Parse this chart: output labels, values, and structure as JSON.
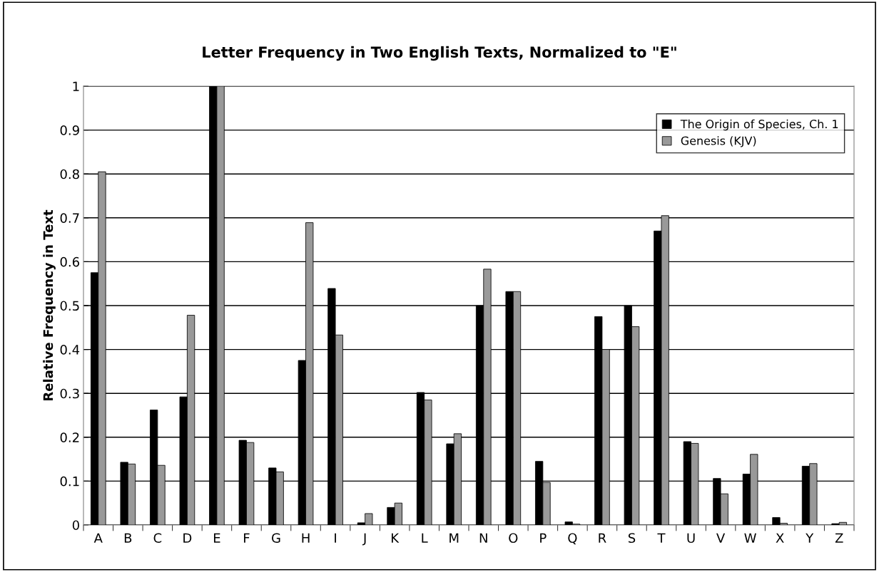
{
  "chart_data": {
    "type": "bar",
    "title": "Letter Frequency in Two English Texts, Normalized to \"E\"",
    "ylabel": "Relative Frequency in Text",
    "categories": [
      "A",
      "B",
      "C",
      "D",
      "E",
      "F",
      "G",
      "H",
      "I",
      "J",
      "K",
      "L",
      "M",
      "N",
      "O",
      "P",
      "Q",
      "R",
      "S",
      "T",
      "U",
      "V",
      "W",
      "X",
      "Y",
      "Z"
    ],
    "series": [
      {
        "name": "The Origin of Species, Ch. 1",
        "color": "#000000",
        "values": [
          0.575,
          0.143,
          0.262,
          0.292,
          1,
          0.193,
          0.13,
          0.375,
          0.539,
          0.005,
          0.04,
          0.302,
          0.185,
          0.5,
          0.532,
          0.145,
          0.007,
          0.475,
          0.5,
          0.67,
          0.19,
          0.106,
          0.116,
          0.017,
          0.134,
          0.003
        ]
      },
      {
        "name": "Genesis (KJV)",
        "color": "#999999",
        "values": [
          0.805,
          0.139,
          0.136,
          0.478,
          1,
          0.188,
          0.121,
          0.689,
          0.433,
          0.026,
          0.05,
          0.285,
          0.208,
          0.583,
          0.532,
          0.097,
          0.002,
          0.4,
          0.452,
          0.705,
          0.186,
          0.071,
          0.161,
          0.004,
          0.14,
          0.006
        ]
      }
    ],
    "ylim": [
      0,
      1
    ],
    "yticks": [
      0,
      {
        "value": 0.1,
        "label": "0.1"
      },
      {
        "value": 0.2,
        "label": "0.2"
      },
      {
        "value": 0.3,
        "label": "0.3"
      },
      {
        "value": 0.4,
        "label": "0.4"
      },
      {
        "value": 0.5,
        "label": "0.5"
      },
      {
        "value": 0.6,
        "label": "0.6"
      },
      {
        "value": 0.7,
        "label": "0.7"
      },
      {
        "value": 0.8,
        "label": "0.8"
      },
      {
        "value": 0.9,
        "label": "0.9"
      },
      1
    ],
    "grid": "y",
    "legend": "top right"
  }
}
